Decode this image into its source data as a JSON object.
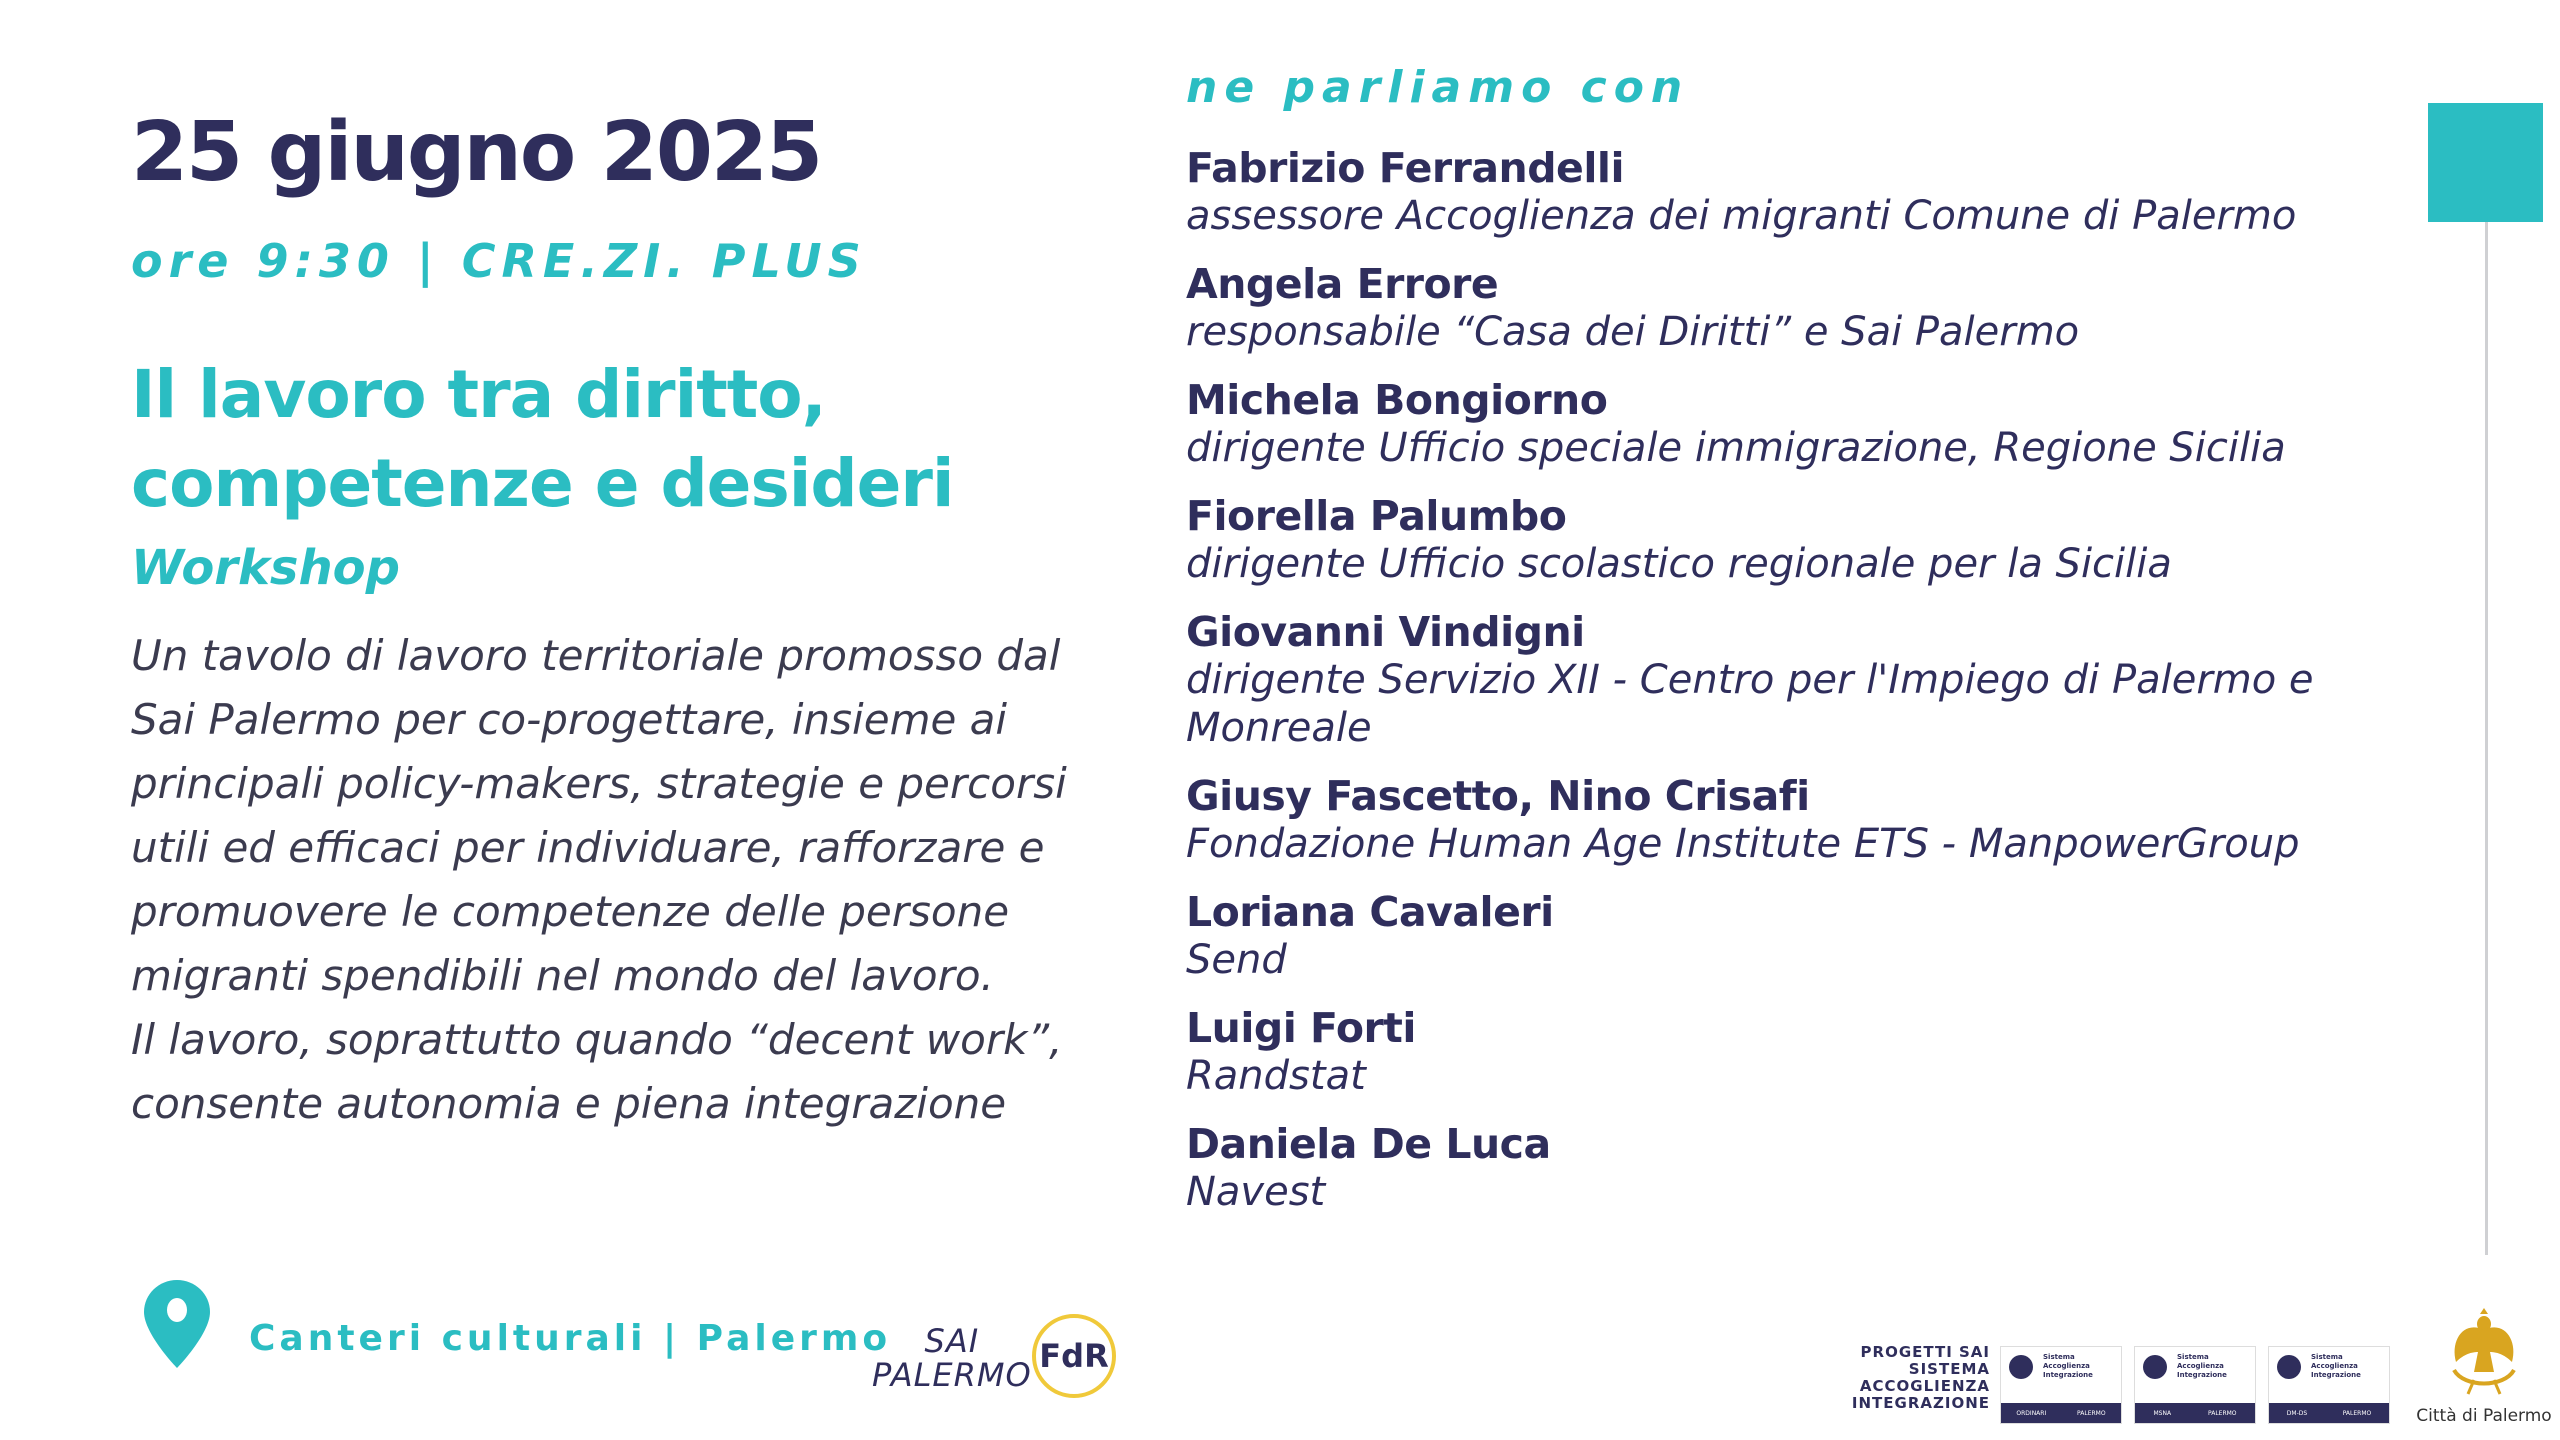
{
  "event": {
    "date": "25 giugno 2025",
    "time_place": "ore 9:30 | CRE.ZI. PLUS",
    "title_lines": [
      "Il lavoro tra diritto,",
      "competenze e desideri"
    ],
    "kind": "Workshop",
    "description_lines": [
      "Un tavolo di lavoro territoriale promosso dal",
      "Sai Palermo per co-progettare, insieme ai",
      "principali policy-makers, strategie e percorsi",
      "utili ed efficaci per individuare, rafforzare e",
      "promuovere le competenze delle persone",
      "migranti spendibili nel mondo del lavoro.",
      "Il lavoro, soprattutto quando “decent work”,",
      "consente autonomia e piena integrazione"
    ],
    "venue": "Canteri culturali | Palermo"
  },
  "speakers_heading": "ne parliamo con",
  "speakers": [
    {
      "name": "Fabrizio Ferrandelli",
      "role": "assessore Accoglienza dei migranti Comune di Palermo"
    },
    {
      "name": "Angela Errore",
      "role": "responsabile “Casa dei Diritti” e Sai Palermo"
    },
    {
      "name": "Michela Bongiorno",
      "role": "dirigente Ufficio speciale immigrazione, Regione Sicilia"
    },
    {
      "name": "Fiorella Palumbo",
      "role": "dirigente Ufficio scolastico regionale per la Sicilia"
    },
    {
      "name": "Giovanni Vindigni",
      "role": "dirigente Servizio XII - Centro per l'Impiego di Palermo e Monreale"
    },
    {
      "name": "Giusy Fascetto, Nino Crisafi",
      "role": "Fondazione Human Age Institute ETS - ManpowerGroup"
    },
    {
      "name": "Loriana Cavaleri",
      "role": "Send"
    },
    {
      "name": "Luigi Forti",
      "role": "Randstat"
    },
    {
      "name": "Daniela De Luca",
      "role": "Navest"
    }
  ],
  "logos": {
    "sai_palermo": [
      "SAI",
      "PALERMO"
    ],
    "fdr": "FdR",
    "progetti_sai": [
      "PROGETTI SAI",
      "SISTEMA",
      "ACCOGLIENZA",
      "INTEGRAZIONE"
    ],
    "sai_badge_title": "Sistema Accoglienza Integrazione",
    "sai_badges": [
      [
        "ORDINARI",
        "PALERMO"
      ],
      [
        "MSNA",
        "PALERMO"
      ],
      [
        "DM-DS",
        "PALERMO"
      ]
    ],
    "citta": "Città di Palermo"
  },
  "colors": {
    "accent": "#2bbdc2",
    "navy": "#2f2e5c",
    "gold": "#f0c93a"
  }
}
